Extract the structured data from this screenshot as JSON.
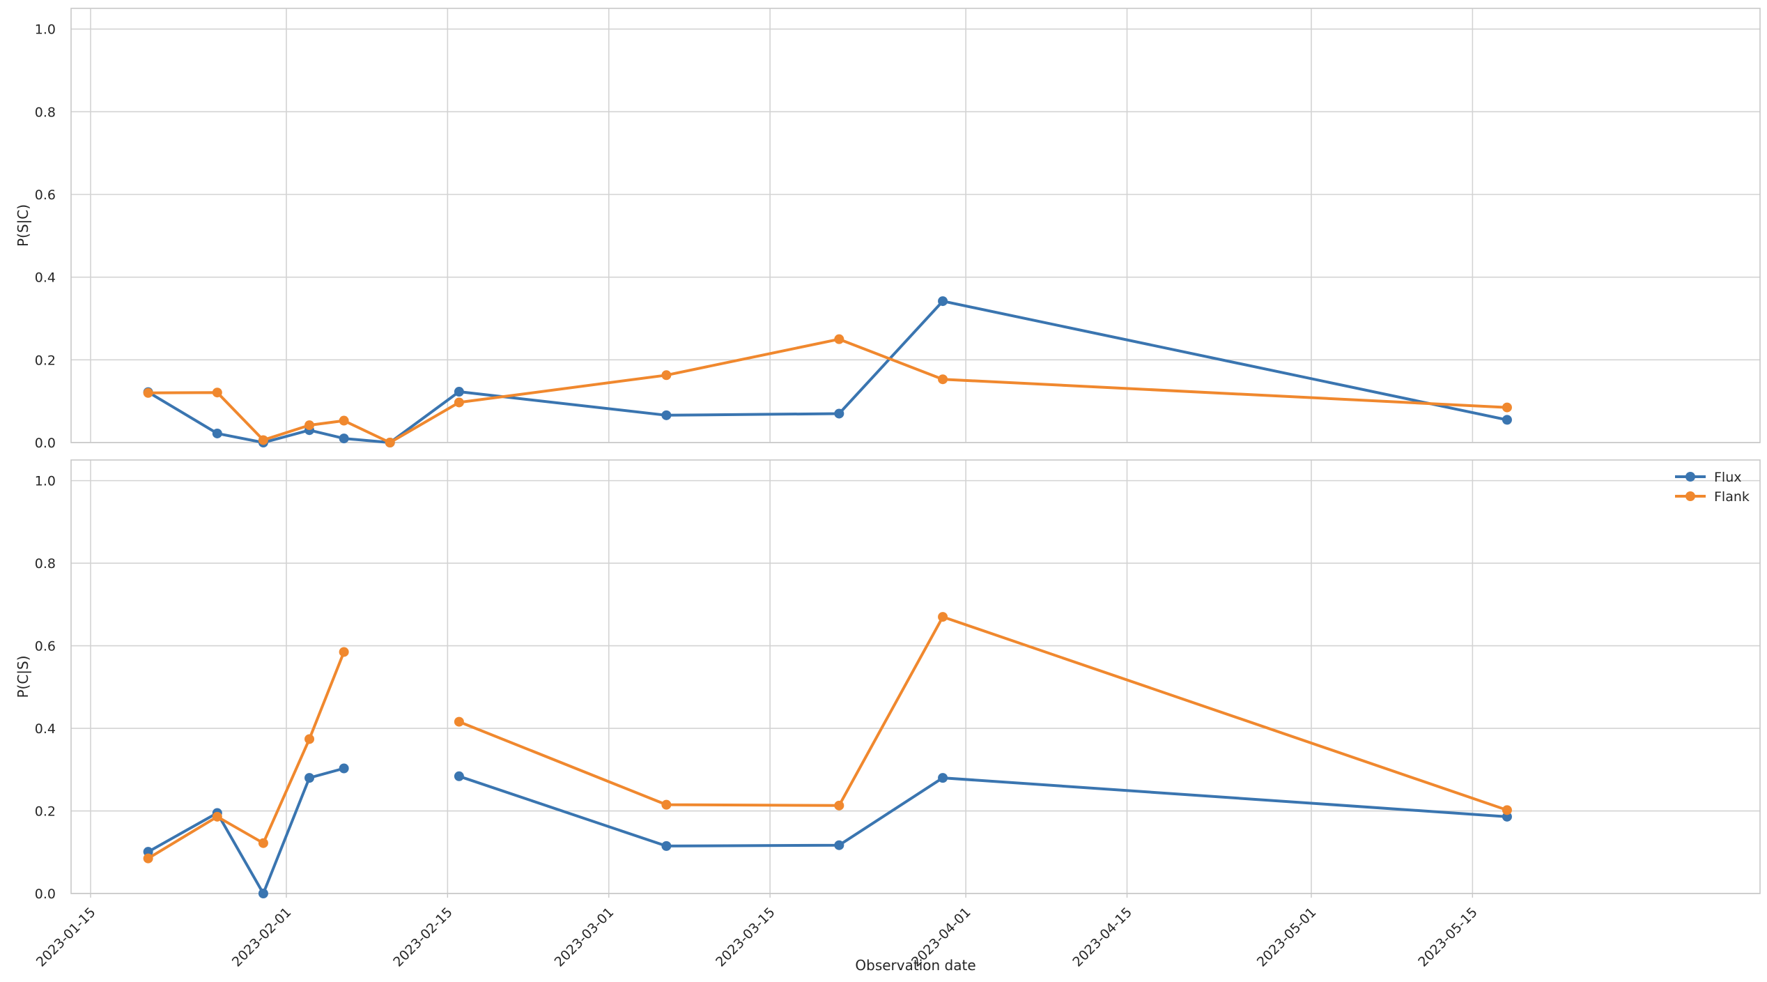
{
  "chart_data": [
    {
      "type": "line",
      "title": "",
      "xlabel": "",
      "ylabel": "P(S|C)",
      "ylim": [
        0,
        1.05
      ],
      "yticks": [
        "0.0",
        "0.2",
        "0.4",
        "0.6",
        "0.8",
        "1.0"
      ],
      "grid": true,
      "legend": false,
      "series": [
        {
          "name": "Flux",
          "color": "#3a75b0",
          "points": [
            {
              "x": "2023-01-20",
              "y": 0.122
            },
            {
              "x": "2023-01-26",
              "y": 0.022
            },
            {
              "x": "2023-01-30",
              "y": 0.0
            },
            {
              "x": "2023-02-03",
              "y": 0.03
            },
            {
              "x": "2023-02-06",
              "y": 0.01
            },
            {
              "x": "2023-02-10",
              "y": 0.0
            },
            {
              "x": "2023-02-16",
              "y": 0.123
            },
            {
              "x": "2023-03-06",
              "y": 0.066
            },
            {
              "x": "2023-03-21",
              "y": 0.07
            },
            {
              "x": "2023-03-30",
              "y": 0.342
            },
            {
              "x": "2023-05-18",
              "y": 0.055
            }
          ]
        },
        {
          "name": "Flank",
          "color": "#f0882e",
          "points": [
            {
              "x": "2023-01-20",
              "y": 0.12
            },
            {
              "x": "2023-01-26",
              "y": 0.121
            },
            {
              "x": "2023-01-30",
              "y": 0.006
            },
            {
              "x": "2023-02-03",
              "y": 0.042
            },
            {
              "x": "2023-02-06",
              "y": 0.053
            },
            {
              "x": "2023-02-10",
              "y": 0.0
            },
            {
              "x": "2023-02-16",
              "y": 0.097
            },
            {
              "x": "2023-03-06",
              "y": 0.163
            },
            {
              "x": "2023-03-21",
              "y": 0.25
            },
            {
              "x": "2023-03-30",
              "y": 0.153
            },
            {
              "x": "2023-05-18",
              "y": 0.085
            }
          ]
        }
      ]
    },
    {
      "type": "line",
      "title": "",
      "xlabel": "Observation date",
      "ylabel": "P(C|S)",
      "ylim": [
        0,
        1.05
      ],
      "yticks": [
        "0.0",
        "0.2",
        "0.4",
        "0.6",
        "0.8",
        "1.0"
      ],
      "xticks": [
        "2023-01-15",
        "2023-02-01",
        "2023-02-15",
        "2023-03-01",
        "2023-03-15",
        "2023-04-01",
        "2023-04-15",
        "2023-05-01",
        "2023-05-15"
      ],
      "grid": true,
      "legend": true,
      "legend_position": "top-right",
      "series": [
        {
          "name": "Flux",
          "color": "#3a75b0",
          "points": [
            {
              "x": "2023-01-20",
              "y": 0.101
            },
            {
              "x": "2023-01-26",
              "y": 0.195
            },
            {
              "x": "2023-01-30",
              "y": 0.0
            },
            {
              "x": "2023-02-03",
              "y": 0.28
            },
            {
              "x": "2023-02-06",
              "y": 0.303
            },
            {
              "x": "2023-02-10",
              "y": null
            },
            {
              "x": "2023-02-16",
              "y": 0.284
            },
            {
              "x": "2023-03-06",
              "y": 0.115
            },
            {
              "x": "2023-03-21",
              "y": 0.117
            },
            {
              "x": "2023-03-30",
              "y": 0.28
            },
            {
              "x": "2023-05-18",
              "y": 0.186
            }
          ]
        },
        {
          "name": "Flank",
          "color": "#f0882e",
          "points": [
            {
              "x": "2023-01-20",
              "y": 0.085
            },
            {
              "x": "2023-01-26",
              "y": 0.186
            },
            {
              "x": "2023-01-30",
              "y": 0.122
            },
            {
              "x": "2023-02-03",
              "y": 0.374
            },
            {
              "x": "2023-02-06",
              "y": 0.585
            },
            {
              "x": "2023-02-10",
              "y": null
            },
            {
              "x": "2023-02-16",
              "y": 0.416
            },
            {
              "x": "2023-03-06",
              "y": 0.215
            },
            {
              "x": "2023-03-21",
              "y": 0.213
            },
            {
              "x": "2023-03-30",
              "y": 0.67
            },
            {
              "x": "2023-05-18",
              "y": 0.202
            }
          ]
        }
      ]
    }
  ]
}
